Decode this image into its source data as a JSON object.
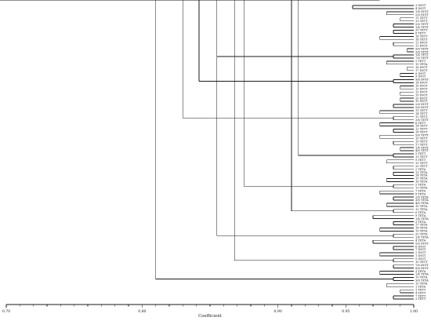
{
  "chart_data": {
    "type": "dendrogram",
    "xlabel": "Coefficient",
    "xlim": [
      0.7,
      1.0
    ],
    "ticks": [
      "0.70",
      "0.80",
      "0.90",
      "0.95",
      "1.00"
    ],
    "tick_values": [
      0.7,
      0.8,
      0.9,
      0.95,
      1.0
    ],
    "orientation": "leaves-right",
    "leaf_labels": [
      "3 INGT",
      "4 INGT",
      "1/4 INGT",
      "2/6 INGT",
      "11 TETT",
      "13 TETT",
      "5/6 TETT",
      "1/4 TETT",
      "20 TETT",
      "8 TETT",
      "16 TETT",
      "18 TETT",
      "11 INGT",
      "13 INGT",
      "9/6 TETT",
      "3/6 TETT",
      "1/4 TETT",
      "7/6 TETT",
      "2 TETT",
      "15 TETA",
      "16 INGT",
      "17 INGT",
      "8 INGT",
      "9 INGT",
      "9/6 INGT",
      "14 INGT",
      "18 INGT",
      "15 INGT",
      "12 INGT",
      "19 INGT",
      "20 INGT",
      "10 INGT",
      "2/6 INGT",
      "5/6 INGT",
      "11 TETT",
      "14 TETT",
      "12 TETT",
      "3/6 TETT",
      "6 TETT",
      "14 TETT",
      "12 TETT",
      "18 TETT",
      "5/6 TETT",
      "10 TETT",
      "19 TETT",
      "17 TETT",
      "1/4 TETT",
      "4/6 TETT",
      "5 TETT",
      "13 TETT",
      "9 TETT",
      "15 TETT",
      "20 TETT",
      "2 TETA",
      "11 TETA",
      "14 TETA",
      "15 TETA",
      "16 TETA",
      "5 TETA",
      "13 TETA",
      "7 TETA",
      "8 TETA",
      "2/6 TETA",
      "3/6 TETA",
      "4/6 TETA",
      "10 TETA",
      "12 TETA",
      "6 TETA",
      "9 TETA",
      "1/4 TETA",
      "3 TETA",
      "17 TETA",
      "18 TETA",
      "19 TETA",
      "20 TETA",
      "1/4 TETA",
      "4 TETA",
      "5/6 INGT",
      "6 INGT",
      "7 INGT",
      "2 INGT",
      "1 INGT",
      "5 INGT",
      "10 TETT",
      "7/6 INGT",
      "8/6 INGT",
      "3 TETA",
      "1/4 TETA",
      "19 TETA",
      "9/6 TETA",
      "10 TETA",
      "1 TETA",
      "1 TETT",
      "4 TETT",
      "7 TETT",
      "3 TETT"
    ],
    "merges": [
      {
        "a": 0,
        "b": 1,
        "h": 0.955
      },
      {
        "a": 2,
        "b": 3,
        "h": 0.98
      },
      {
        "a": 100,
        "b": 101,
        "h": 0.92
      },
      {
        "a": 4,
        "b": 5,
        "h": 0.99
      },
      {
        "a": 6,
        "b": 7,
        "h": 0.985
      },
      {
        "a": 103,
        "b": 104,
        "h": 0.97
      },
      {
        "a": 102,
        "b": 105,
        "h": 0.895
      },
      {
        "a": 8,
        "b": 9,
        "h": 0.985
      },
      {
        "a": 10,
        "b": 11,
        "h": 0.975
      },
      {
        "a": 107,
        "b": 108,
        "h": 0.955
      },
      {
        "a": 106,
        "b": 109,
        "h": 0.865
      },
      {
        "a": 12,
        "b": 13,
        "h": 0.985
      },
      {
        "a": 14,
        "b": 15,
        "h": 0.995
      },
      {
        "a": 111,
        "b": 112,
        "h": 0.97
      },
      {
        "a": 16,
        "b": 17,
        "h": 0.985
      },
      {
        "a": 18,
        "b": 19,
        "h": 0.98
      },
      {
        "a": 114,
        "b": 115,
        "h": 0.97
      },
      {
        "a": 113,
        "b": 116,
        "h": 0.91
      },
      {
        "a": 110,
        "b": 117,
        "h": 0.855
      },
      {
        "a": 20,
        "b": 21,
        "h": 0.995
      },
      {
        "a": 22,
        "b": 23,
        "h": 0.99
      },
      {
        "a": 119,
        "b": 120,
        "h": 0.975
      },
      {
        "a": 24,
        "b": 25,
        "h": 0.985
      },
      {
        "a": 121,
        "b": 122,
        "h": 0.965
      },
      {
        "a": 26,
        "b": 27,
        "h": 0.99
      },
      {
        "a": 28,
        "b": 29,
        "h": 0.99
      },
      {
        "a": 124,
        "b": 125,
        "h": 0.975
      },
      {
        "a": 123,
        "b": 126,
        "h": 0.885
      },
      {
        "a": 30,
        "b": 31,
        "h": 0.99
      },
      {
        "a": 127,
        "b": 128,
        "h": 0.865
      },
      {
        "a": 118,
        "b": 129,
        "h": 0.842
      },
      {
        "a": 32,
        "b": 33,
        "h": 0.985
      },
      {
        "a": 34,
        "b": 35,
        "h": 0.975
      },
      {
        "a": 131,
        "b": 132,
        "h": 0.965
      },
      {
        "a": 36,
        "b": 37,
        "h": 0.985
      },
      {
        "a": 38,
        "b": 39,
        "h": 0.975
      },
      {
        "a": 134,
        "b": 135,
        "h": 0.965
      },
      {
        "a": 133,
        "b": 136,
        "h": 0.94
      },
      {
        "a": 40,
        "b": 41,
        "h": 0.985
      },
      {
        "a": 42,
        "b": 43,
        "h": 0.975
      },
      {
        "a": 138,
        "b": 139,
        "h": 0.965
      },
      {
        "a": 137,
        "b": 140,
        "h": 0.925
      },
      {
        "a": 44,
        "b": 45,
        "h": 0.985
      },
      {
        "a": 46,
        "b": 47,
        "h": 0.99
      },
      {
        "a": 142,
        "b": 143,
        "h": 0.975
      },
      {
        "a": 48,
        "b": 49,
        "h": 0.985
      },
      {
        "a": 50,
        "b": 51,
        "h": 0.98
      },
      {
        "a": 145,
        "b": 146,
        "h": 0.965
      },
      {
        "a": 144,
        "b": 147,
        "h": 0.945
      },
      {
        "a": 52,
        "b": 53,
        "h": 0.985
      },
      {
        "a": 148,
        "b": 149,
        "h": 0.93
      },
      {
        "a": 141,
        "b": 150,
        "h": 0.915
      },
      {
        "a": 54,
        "b": 55,
        "h": 0.985
      },
      {
        "a": 56,
        "b": 57,
        "h": 0.98
      },
      {
        "a": 152,
        "b": 153,
        "h": 0.965
      },
      {
        "a": 58,
        "b": 59,
        "h": 0.985
      },
      {
        "a": 60,
        "b": 61,
        "h": 0.975
      },
      {
        "a": 155,
        "b": 156,
        "h": 0.955
      },
      {
        "a": 154,
        "b": 157,
        "h": 0.935
      },
      {
        "a": 62,
        "b": 63,
        "h": 0.985
      },
      {
        "a": 64,
        "b": 65,
        "h": 0.98
      },
      {
        "a": 159,
        "b": 160,
        "h": 0.965
      },
      {
        "a": 66,
        "b": 67,
        "h": 0.985
      },
      {
        "a": 68,
        "b": 69,
        "h": 0.97
      },
      {
        "a": 162,
        "b": 163,
        "h": 0.955
      },
      {
        "a": 161,
        "b": 164,
        "h": 0.94
      },
      {
        "a": 158,
        "b": 165,
        "h": 0.91
      },
      {
        "a": 151,
        "b": 166,
        "h": 0.875
      },
      {
        "a": 70,
        "b": 71,
        "h": 0.985
      },
      {
        "a": 72,
        "b": 73,
        "h": 0.975
      },
      {
        "a": 168,
        "b": 169,
        "h": 0.96
      },
      {
        "a": 74,
        "b": 75,
        "h": 0.985
      },
      {
        "a": 76,
        "b": 77,
        "h": 0.97
      },
      {
        "a": 171,
        "b": 172,
        "h": 0.955
      },
      {
        "a": 170,
        "b": 173,
        "h": 0.905
      },
      {
        "a": 78,
        "b": 79,
        "h": 0.985
      },
      {
        "a": 80,
        "b": 81,
        "h": 0.975
      },
      {
        "a": 175,
        "b": 176,
        "h": 0.955
      },
      {
        "a": 82,
        "b": 83,
        "h": 0.985
      },
      {
        "a": 177,
        "b": 178,
        "h": 0.89
      },
      {
        "a": 174,
        "b": 179,
        "h": 0.868
      },
      {
        "a": 167,
        "b": 180,
        "h": 0.855
      },
      {
        "a": 130,
        "b": 181,
        "h": 0.83
      },
      {
        "a": 84,
        "b": 85,
        "h": 0.985
      },
      {
        "a": 86,
        "b": 87,
        "h": 0.975
      },
      {
        "a": 183,
        "b": 184,
        "h": 0.955
      },
      {
        "a": 88,
        "b": 89,
        "h": 0.985
      },
      {
        "a": 185,
        "b": 186,
        "h": 0.87
      },
      {
        "a": 182,
        "b": 187,
        "h": 0.81
      },
      {
        "a": 90,
        "b": 91,
        "h": 0.98
      },
      {
        "a": 188,
        "b": 189,
        "h": 0.79
      },
      {
        "a": 92,
        "b": 93,
        "h": 0.99
      },
      {
        "a": 190,
        "b": 191,
        "h": 0.776
      },
      {
        "a": 94,
        "b": 95,
        "h": 0.985
      },
      {
        "a": 192,
        "b": 193,
        "h": 0.746
      }
    ]
  }
}
